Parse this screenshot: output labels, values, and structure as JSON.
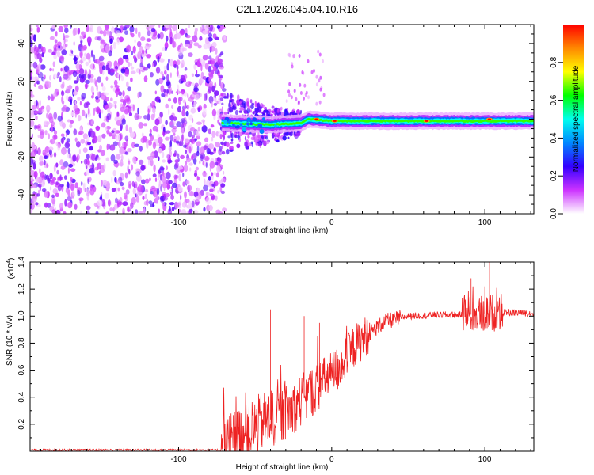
{
  "title": "C2E1.2026.045.04.10.R16",
  "chart_data": [
    {
      "type": "heatmap",
      "title": "C2E1.2026.045.04.10.R16",
      "xlabel": "Height of straight line (km)",
      "ylabel": "Frequency (Hz)",
      "xlim": [
        -197,
        132
      ],
      "ylim": [
        -50,
        50
      ],
      "xticks": [
        -100,
        0,
        100
      ],
      "xtick_labels": [
        "-100",
        "0",
        "100"
      ],
      "yticks": [
        -40,
        -20,
        0,
        20,
        40
      ],
      "ytick_labels": [
        "-40",
        "-20",
        "0",
        "20",
        "40"
      ],
      "colorbar": {
        "label": "Normalized spectral amplitude",
        "range": [
          0,
          1
        ],
        "ticks": [
          0.0,
          0.2,
          0.4,
          0.6,
          0.8
        ],
        "tick_labels": [
          "0.0",
          "0.2",
          "0.4",
          "0.6",
          "0.8"
        ],
        "stops": [
          "#ffffff",
          "#cc33ff",
          "#3300ff",
          "#0088ff",
          "#00ffee",
          "#00ff00",
          "#ffff00",
          "#ff8800",
          "#ff0000"
        ]
      },
      "features": {
        "noise_region_x": [
          -197,
          -72
        ],
        "transition_region_x": [
          -72,
          -20
        ],
        "ridge_x": [
          -20,
          132
        ],
        "ridge_center_hz": [
          {
            "x": -72,
            "f": -2
          },
          {
            "x": -40,
            "f": -3
          },
          {
            "x": -20,
            "f": -2
          },
          {
            "x": -15,
            "f": 0
          },
          {
            "x": 0,
            "f": -1
          },
          {
            "x": 40,
            "f": -1
          },
          {
            "x": 100,
            "f": -1
          },
          {
            "x": 132,
            "f": -1
          }
        ],
        "peak_amplitude_points": [
          {
            "x": -10,
            "f": 0
          },
          {
            "x": 2,
            "f": -1
          },
          {
            "x": 103,
            "f": 0
          },
          {
            "x": 62,
            "f": -1
          }
        ]
      }
    },
    {
      "type": "line",
      "xlabel": "Height of straight line (km)",
      "ylabel": "SNR (10 * v/v)",
      "y_multiplier_label": "(x10",
      "y_multiplier_exp": "4",
      "xlim": [
        -197,
        132
      ],
      "ylim": [
        0.0,
        1.4
      ],
      "xticks": [
        -100,
        0,
        100
      ],
      "xtick_labels": [
        "-100",
        "0",
        "100"
      ],
      "yticks": [
        0.2,
        0.4,
        0.6,
        0.8,
        1.0,
        1.2,
        1.4
      ],
      "ytick_labels": [
        "0.2",
        "0.4",
        "0.6",
        "0.8",
        "1.0",
        "1.2",
        "1.4"
      ],
      "line_color": "#ee2222",
      "series_shape": [
        {
          "x": -197,
          "y": 0.01
        },
        {
          "x": -72,
          "y": 0.01
        },
        {
          "x": -65,
          "y": 0.06
        },
        {
          "x": -55,
          "y": 0.14
        },
        {
          "x": -45,
          "y": 0.22
        },
        {
          "x": -35,
          "y": 0.25
        },
        {
          "x": -25,
          "y": 0.33
        },
        {
          "x": -15,
          "y": 0.42
        },
        {
          "x": -5,
          "y": 0.52
        },
        {
          "x": 5,
          "y": 0.62
        },
        {
          "x": 15,
          "y": 0.78
        },
        {
          "x": 25,
          "y": 0.88
        },
        {
          "x": 35,
          "y": 0.96
        },
        {
          "x": 50,
          "y": 1.0
        },
        {
          "x": 70,
          "y": 1.01
        },
        {
          "x": 90,
          "y": 1.01
        },
        {
          "x": 110,
          "y": 1.03
        },
        {
          "x": 132,
          "y": 1.02
        }
      ],
      "spikes": [
        {
          "x": -40,
          "y": 1.05
        },
        {
          "x": -18,
          "y": 1.0
        },
        {
          "x": -8,
          "y": 0.95
        },
        {
          "x": 91,
          "y": 1.28
        },
        {
          "x": 100,
          "y": 1.22
        },
        {
          "x": 103,
          "y": 1.4
        },
        {
          "x": 108,
          "y": 1.18
        }
      ]
    }
  ]
}
